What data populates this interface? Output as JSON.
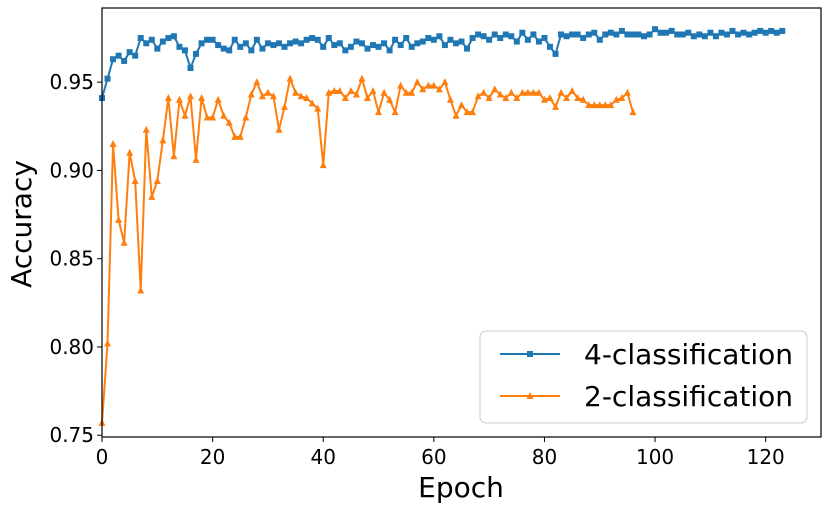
{
  "chart_data": {
    "type": "line",
    "title": "",
    "xlabel": "Epoch",
    "ylabel": "Accuracy",
    "xlim": [
      0,
      130
    ],
    "ylim": [
      0.749,
      0.992
    ],
    "xticks": [
      0,
      20,
      40,
      60,
      80,
      100,
      120
    ],
    "xtick_labels": [
      "0",
      "20",
      "40",
      "60",
      "80",
      "100",
      "120"
    ],
    "yticks": [
      0.75,
      0.8,
      0.85,
      0.9,
      0.95
    ],
    "ytick_labels": [
      "0.75",
      "0.80",
      "0.85",
      "0.90",
      "0.95"
    ],
    "grid": false,
    "legend_position": "bottom-right",
    "series": [
      {
        "name": "4-classification",
        "color": "#1f77b4",
        "marker": "square",
        "x": [
          0,
          1,
          2,
          3,
          4,
          5,
          6,
          7,
          8,
          9,
          10,
          11,
          12,
          13,
          14,
          15,
          16,
          17,
          18,
          19,
          20,
          21,
          22,
          23,
          24,
          25,
          26,
          27,
          28,
          29,
          30,
          31,
          32,
          33,
          34,
          35,
          36,
          37,
          38,
          39,
          40,
          41,
          42,
          43,
          44,
          45,
          46,
          47,
          48,
          49,
          50,
          51,
          52,
          53,
          54,
          55,
          56,
          57,
          58,
          59,
          60,
          61,
          62,
          63,
          64,
          65,
          66,
          67,
          68,
          69,
          70,
          71,
          72,
          73,
          74,
          75,
          76,
          77,
          78,
          79,
          80,
          81,
          82,
          83,
          84,
          85,
          86,
          87,
          88,
          89,
          90,
          91,
          92,
          93,
          94,
          95,
          96,
          97,
          98,
          99,
          100,
          101,
          102,
          103,
          104,
          105,
          106,
          107,
          108,
          109,
          110,
          111,
          112,
          113,
          114,
          115,
          116,
          117,
          118,
          119,
          120,
          121,
          122,
          123
        ],
        "y": [
          0.941,
          0.952,
          0.963,
          0.965,
          0.962,
          0.967,
          0.965,
          0.975,
          0.972,
          0.974,
          0.969,
          0.973,
          0.975,
          0.976,
          0.97,
          0.968,
          0.958,
          0.966,
          0.972,
          0.974,
          0.974,
          0.971,
          0.969,
          0.968,
          0.974,
          0.97,
          0.972,
          0.968,
          0.974,
          0.969,
          0.972,
          0.971,
          0.972,
          0.97,
          0.972,
          0.973,
          0.972,
          0.974,
          0.975,
          0.974,
          0.97,
          0.975,
          0.971,
          0.972,
          0.968,
          0.97,
          0.973,
          0.972,
          0.969,
          0.971,
          0.97,
          0.972,
          0.968,
          0.974,
          0.971,
          0.975,
          0.97,
          0.972,
          0.973,
          0.975,
          0.974,
          0.976,
          0.971,
          0.974,
          0.972,
          0.973,
          0.969,
          0.975,
          0.977,
          0.976,
          0.974,
          0.977,
          0.975,
          0.977,
          0.976,
          0.973,
          0.978,
          0.974,
          0.977,
          0.973,
          0.975,
          0.97,
          0.966,
          0.977,
          0.976,
          0.977,
          0.977,
          0.975,
          0.977,
          0.978,
          0.974,
          0.977,
          0.978,
          0.977,
          0.979,
          0.977,
          0.977,
          0.977,
          0.976,
          0.977,
          0.98,
          0.978,
          0.978,
          0.979,
          0.977,
          0.977,
          0.978,
          0.976,
          0.977,
          0.976,
          0.978,
          0.976,
          0.978,
          0.977,
          0.979,
          0.977,
          0.978,
          0.977,
          0.978,
          0.979,
          0.978,
          0.979,
          0.978,
          0.979
        ]
      },
      {
        "name": "2-classification",
        "color": "#ff7f0e",
        "marker": "triangle",
        "x": [
          0,
          1,
          2,
          3,
          4,
          5,
          6,
          7,
          8,
          9,
          10,
          11,
          12,
          13,
          14,
          15,
          16,
          17,
          18,
          19,
          20,
          21,
          22,
          23,
          24,
          25,
          26,
          27,
          28,
          29,
          30,
          31,
          32,
          33,
          34,
          35,
          36,
          37,
          38,
          39,
          40,
          41,
          42,
          43,
          44,
          45,
          46,
          47,
          48,
          49,
          50,
          51,
          52,
          53,
          54,
          55,
          56,
          57,
          58,
          59,
          60,
          61,
          62,
          63,
          64,
          65,
          66,
          67,
          68,
          69,
          70,
          71,
          72,
          73,
          74,
          75,
          76,
          77,
          78,
          79,
          80,
          81,
          82,
          83,
          84,
          85,
          86,
          87,
          88,
          89,
          90,
          91,
          92,
          93,
          94,
          95,
          96
        ],
        "y": [
          0.757,
          0.802,
          0.915,
          0.872,
          0.859,
          0.91,
          0.894,
          0.832,
          0.923,
          0.885,
          0.894,
          0.917,
          0.941,
          0.908,
          0.94,
          0.931,
          0.942,
          0.906,
          0.941,
          0.93,
          0.93,
          0.94,
          0.931,
          0.927,
          0.919,
          0.919,
          0.93,
          0.943,
          0.95,
          0.942,
          0.944,
          0.942,
          0.923,
          0.936,
          0.952,
          0.944,
          0.942,
          0.941,
          0.938,
          0.935,
          0.903,
          0.944,
          0.945,
          0.945,
          0.941,
          0.945,
          0.943,
          0.952,
          0.941,
          0.945,
          0.933,
          0.944,
          0.94,
          0.933,
          0.948,
          0.944,
          0.944,
          0.95,
          0.946,
          0.948,
          0.948,
          0.946,
          0.95,
          0.94,
          0.931,
          0.937,
          0.933,
          0.933,
          0.942,
          0.944,
          0.941,
          0.946,
          0.943,
          0.941,
          0.944,
          0.941,
          0.944,
          0.944,
          0.944,
          0.944,
          0.94,
          0.941,
          0.936,
          0.944,
          0.941,
          0.945,
          0.941,
          0.94,
          0.937,
          0.937,
          0.937,
          0.937,
          0.937,
          0.94,
          0.941,
          0.944,
          0.933
        ]
      }
    ]
  }
}
